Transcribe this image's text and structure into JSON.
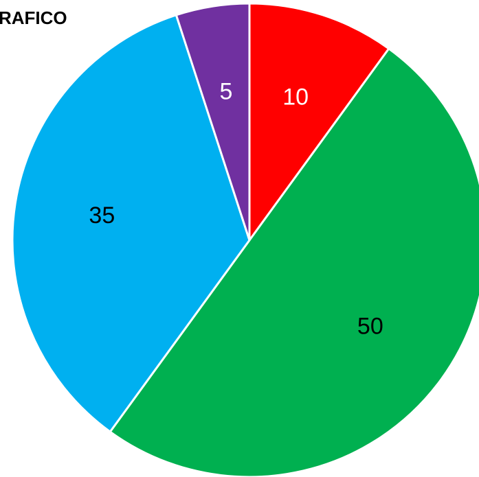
{
  "chart_data": {
    "type": "pie",
    "title": "RAFICO",
    "categories": [
      null,
      null,
      null,
      null
    ],
    "values": [
      10,
      50,
      35,
      5
    ],
    "colors": [
      "#ff0000",
      "#00b050",
      "#00b0f0",
      "#7030a0"
    ]
  }
}
